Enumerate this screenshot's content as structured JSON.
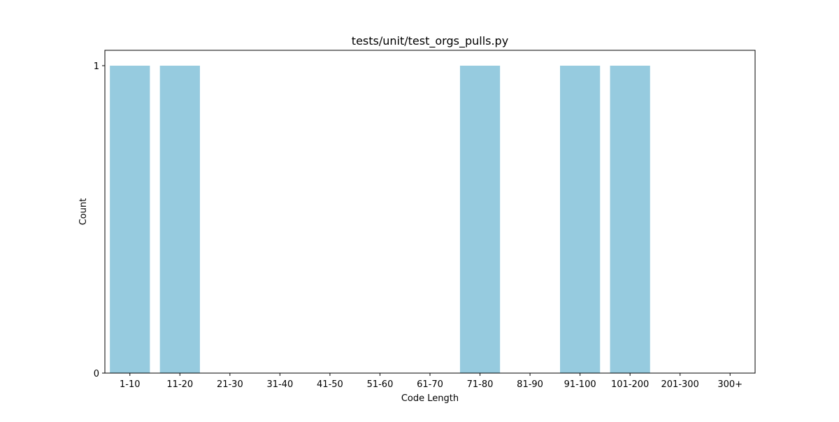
{
  "chart_data": {
    "type": "bar",
    "title": "tests/unit/test_orgs_pulls.py",
    "xlabel": "Code Length",
    "ylabel": "Count",
    "categories": [
      "1-10",
      "11-20",
      "21-30",
      "31-40",
      "41-50",
      "51-60",
      "61-70",
      "71-80",
      "81-90",
      "91-100",
      "101-200",
      "201-300",
      "300+"
    ],
    "values": [
      1,
      1,
      0,
      0,
      0,
      0,
      0,
      1,
      0,
      1,
      1,
      0,
      0
    ],
    "ylim": [
      0,
      1.05
    ],
    "yticks": [
      0,
      1
    ],
    "grid": false,
    "legend": "none",
    "bar_color": "#96cbdf"
  }
}
